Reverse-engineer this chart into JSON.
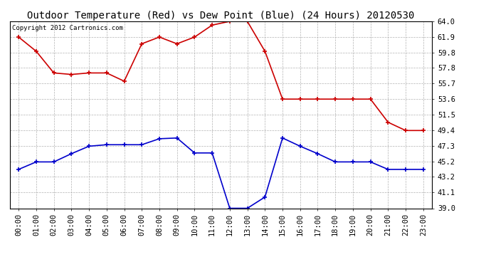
{
  "title": "Outdoor Temperature (Red) vs Dew Point (Blue) (24 Hours) 20120530",
  "copyright_text": "Copyright 2012 Cartronics.com",
  "hours": [
    0,
    1,
    2,
    3,
    4,
    5,
    6,
    7,
    8,
    9,
    10,
    11,
    12,
    13,
    14,
    15,
    16,
    17,
    18,
    19,
    20,
    21,
    22,
    23
  ],
  "temp_red": [
    61.9,
    60.0,
    57.1,
    56.9,
    57.1,
    57.1,
    56.0,
    61.0,
    61.9,
    61.0,
    61.9,
    63.5,
    64.0,
    64.0,
    60.0,
    53.6,
    53.6,
    53.6,
    53.6,
    53.6,
    53.6,
    50.5,
    49.4,
    49.4
  ],
  "dew_blue": [
    44.2,
    45.2,
    45.2,
    46.3,
    47.3,
    47.5,
    47.5,
    47.5,
    48.3,
    48.4,
    46.4,
    46.4,
    39.0,
    39.0,
    40.5,
    48.4,
    47.3,
    46.3,
    45.2,
    45.2,
    45.2,
    44.2,
    44.2,
    44.2
  ],
  "ylim": [
    39.0,
    64.0
  ],
  "yticks": [
    39.0,
    41.1,
    43.2,
    45.2,
    47.3,
    49.4,
    51.5,
    53.6,
    55.7,
    57.8,
    59.8,
    61.9,
    64.0
  ],
  "bg_color": "#ffffff",
  "plot_bg_color": "#ffffff",
  "grid_color": "#aaaaaa",
  "red_color": "#cc0000",
  "blue_color": "#0000cc",
  "title_fontsize": 10,
  "tick_label_fontsize": 7.5,
  "copyright_fontsize": 6.5
}
